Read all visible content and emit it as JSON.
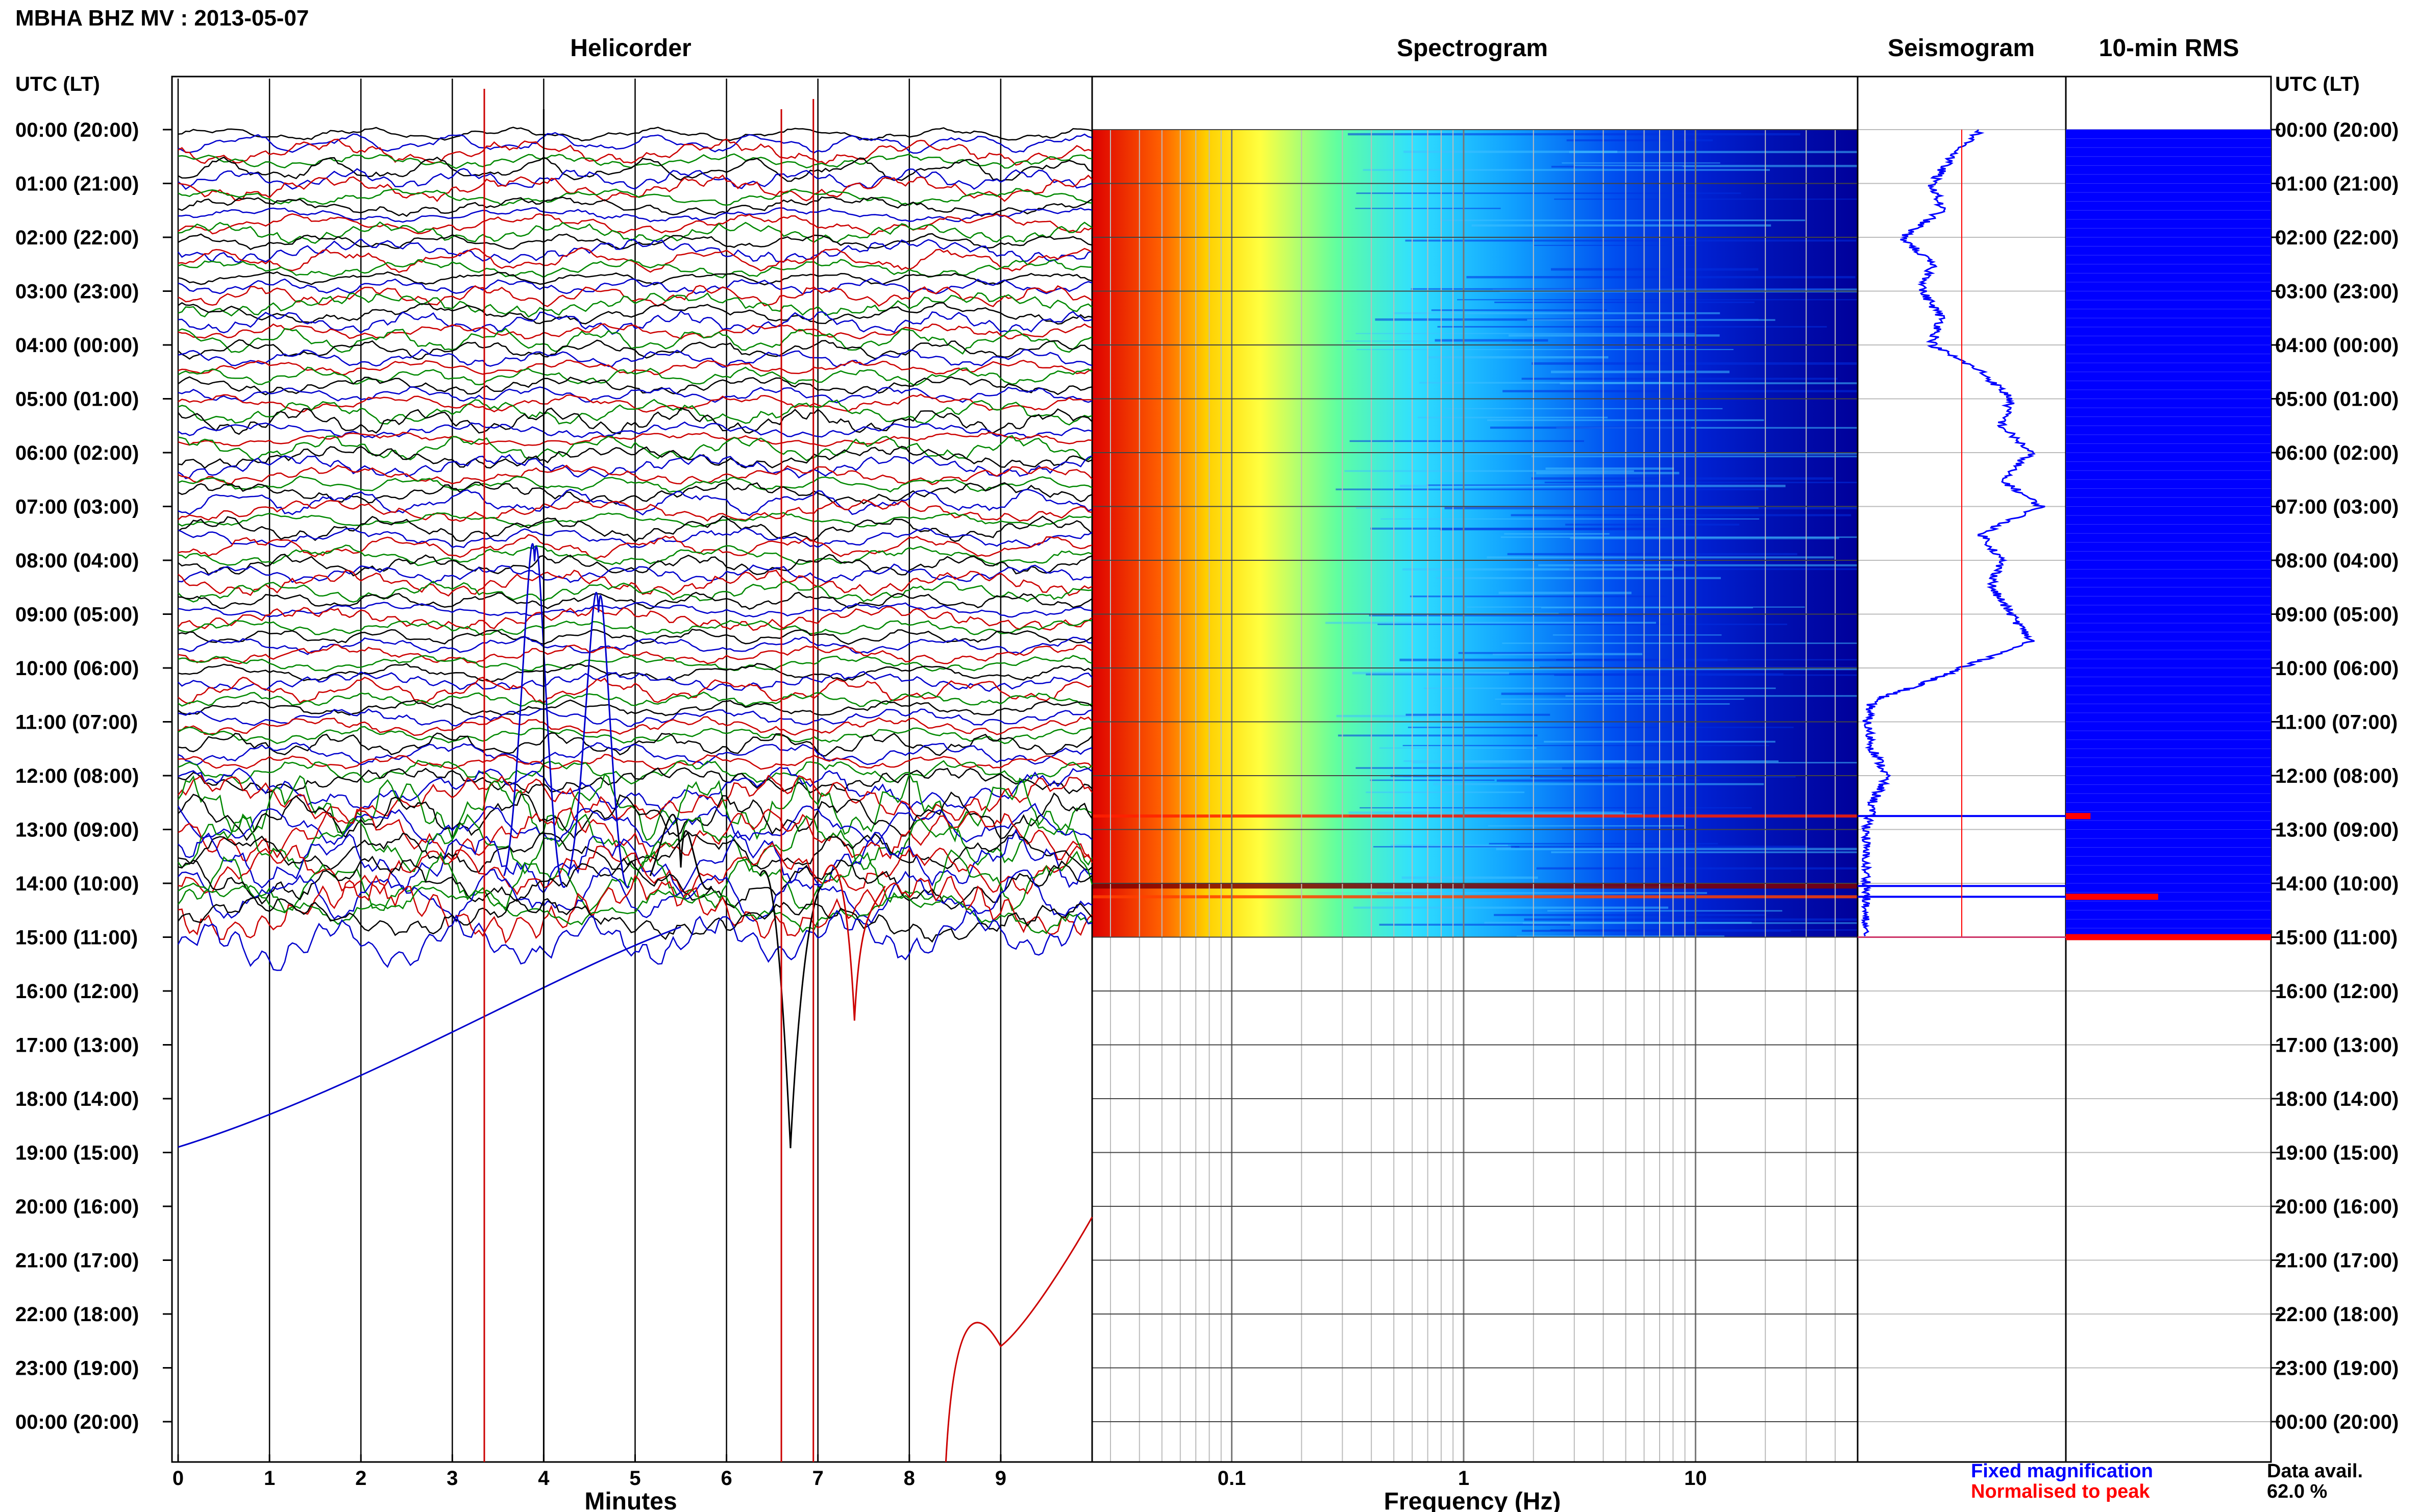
{
  "figure_title": "MBHA BHZ MV : 2013-05-07",
  "time_axis_header": "UTC (LT)",
  "time_axis_header_right": "UTC (LT)",
  "panels": {
    "helicorder": "Helicorder",
    "spectrogram": "Spectrogram",
    "seismogram": "Seismogram",
    "rms": "10-min RMS"
  },
  "x_axis_labels": {
    "helicorder": "Minutes",
    "spectrogram": "Frequency (Hz)"
  },
  "legend": {
    "fixed": "Fixed magnification",
    "normalised": "Normalised to peak",
    "fixed_color": "#0000ff",
    "normalised_color": "#ff0000"
  },
  "availability": {
    "label": "Data avail.",
    "value": "62.0 %"
  },
  "chart_data": [
    {
      "type": "line",
      "name": "helicorder",
      "xlabel": "Minutes",
      "xlim": [
        0,
        10
      ],
      "x_ticks": [
        "0",
        "1",
        "2",
        "3",
        "4",
        "5",
        "6",
        "7",
        "8",
        "9"
      ],
      "row_minutes": 10,
      "rows_recorded": 90,
      "trace_colors": [
        "#000000",
        "#0000cc",
        "#cc0000",
        "#008800"
      ],
      "time_ticks": [
        "00:00 (20:00)",
        "01:00 (21:00)",
        "02:00 (22:00)",
        "03:00 (23:00)",
        "04:00 (00:00)",
        "05:00 (01:00)",
        "06:00 (02:00)",
        "07:00 (03:00)",
        "08:00 (04:00)",
        "09:00 (05:00)",
        "10:00 (06:00)",
        "11:00 (07:00)",
        "12:00 (08:00)",
        "13:00 (09:00)",
        "14:00 (10:00)",
        "15:00 (11:00)",
        "16:00 (12:00)",
        "17:00 (13:00)",
        "18:00 (14:00)",
        "19:00 (15:00)",
        "20:00 (16:00)",
        "21:00 (17:00)",
        "22:00 (18:00)",
        "23:00 (19:00)",
        "00:00 (20:00)"
      ]
    },
    {
      "type": "heatmap",
      "name": "spectrogram",
      "xlabel": "Frequency (Hz)",
      "x_scale": "log",
      "xlim": [
        0.025,
        50
      ],
      "x_ticks": [
        "0.1",
        "1",
        "10"
      ],
      "y_range_hours": [
        0,
        15
      ],
      "colormap": [
        "#00008f",
        "#0000ff",
        "#0080ff",
        "#00ffff",
        "#80ff80",
        "#ffff00",
        "#ff8000",
        "#ff0000",
        "#800000"
      ]
    },
    {
      "type": "line",
      "name": "seismogram",
      "y_range_hours": [
        0,
        15
      ],
      "series": [
        {
          "name": "Fixed magnification",
          "color": "#0000ff",
          "hours": [
            0,
            0.5,
            1,
            1.5,
            2,
            2.5,
            3,
            3.5,
            4,
            4.5,
            5,
            5.5,
            6,
            6.5,
            7,
            7.5,
            8,
            8.5,
            9,
            9.5,
            10,
            10.3,
            10.6,
            11,
            11.5,
            12,
            12.5,
            13,
            13.5,
            14,
            14.5,
            15
          ],
          "level": [
            0.6,
            0.45,
            0.35,
            0.4,
            0.2,
            0.35,
            0.3,
            0.4,
            0.35,
            0.6,
            0.75,
            0.7,
            0.85,
            0.7,
            0.9,
            0.6,
            0.7,
            0.65,
            0.75,
            0.85,
            0.5,
            0.3,
            0.05,
            0.02,
            0.05,
            0.12,
            0.05,
            0.02,
            0.01,
            0.02,
            0.01,
            0.01
          ]
        },
        {
          "name": "Normalised to peak",
          "color": "#ff0000",
          "level_constant": 0.5
        }
      ]
    },
    {
      "type": "bar",
      "name": "rms",
      "title": "10-min RMS",
      "y_range_hours": [
        0,
        15
      ],
      "spikes": [
        {
          "hour": 12.75,
          "length": 0.12
        },
        {
          "hour": 14.25,
          "length": 0.45
        },
        {
          "hour": 15.0,
          "length": 1.0
        }
      ]
    }
  ]
}
